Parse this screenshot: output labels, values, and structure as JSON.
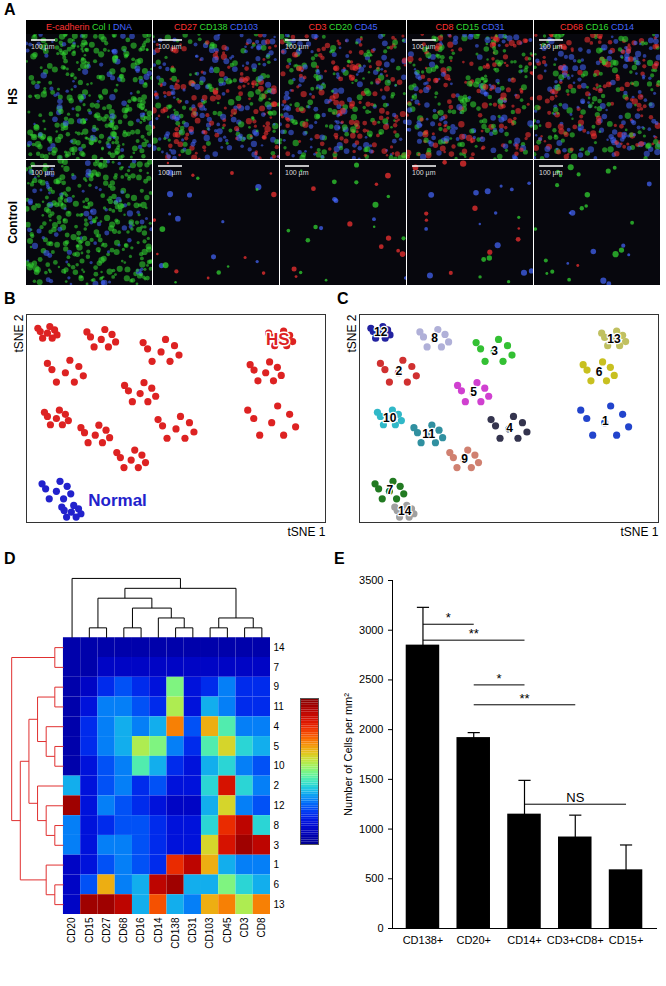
{
  "chart_data": [
    {
      "type": "image_grid",
      "title": "A",
      "rows": [
        "HS",
        "Control"
      ],
      "columns": [
        [
          {
            "name": "E-cadherin",
            "color": "#ff3333"
          },
          {
            "name": "Col I",
            "color": "#33dd33"
          },
          {
            "name": "DNA",
            "color": "#4466ff"
          }
        ],
        [
          {
            "name": "CD27",
            "color": "#ff3333"
          },
          {
            "name": "CD138",
            "color": "#33dd33"
          },
          {
            "name": "CD103",
            "color": "#4466ff"
          }
        ],
        [
          {
            "name": "CD3",
            "color": "#ff3333"
          },
          {
            "name": "CD20",
            "color": "#33dd33"
          },
          {
            "name": "CD45",
            "color": "#4466ff"
          }
        ],
        [
          {
            "name": "CD8",
            "color": "#ff3333"
          },
          {
            "name": "CD15",
            "color": "#33dd33"
          },
          {
            "name": "CD31",
            "color": "#4466ff"
          }
        ],
        [
          {
            "name": "CD68",
            "color": "#ff3333"
          },
          {
            "name": "CD16",
            "color": "#33dd33"
          },
          {
            "name": "CD14",
            "color": "#4466ff"
          }
        ]
      ],
      "scale_bar": "100 µm"
    },
    {
      "type": "scatter",
      "title": "B",
      "x_label": "tSNE 1",
      "y_label": "tSNE 2",
      "xlim": [
        0,
        100
      ],
      "ylim": [
        0,
        100
      ],
      "tick_labels": false,
      "series": [
        {
          "name": "HS",
          "color": "#dd2222",
          "x": [
            82,
            88,
            76,
            86,
            78,
            90,
            74,
            84,
            13,
            17.5,
            8.5,
            16,
            10,
            19,
            7,
            14.5,
            45,
            49.5,
            40.5,
            48,
            42,
            51,
            39,
            46.5,
            50,
            54.5,
            45.5,
            53,
            47,
            56,
            44,
            51.5,
            38,
            41.9,
            34.1,
            40.6,
            35.4,
            43.2,
            32.8,
            39.3,
            80,
            83.9,
            76.1,
            82.6,
            77.4,
            85.2,
            74.8,
            81.3,
            25,
            28.6,
            21.4,
            27.4,
            22.6,
            29.8,
            20.2,
            26.2,
            35,
            38.6,
            31.4,
            37.4,
            32.6,
            39.8,
            30.2,
            36.2,
            10,
            13,
            7,
            12,
            8,
            14,
            6,
            11,
            23,
            26.6,
            19.4,
            25.4,
            20.6,
            27.8,
            18.2,
            24.2,
            7,
            9.4,
            4.6,
            8.6,
            5.4,
            10.2,
            3.8,
            7.8,
            85,
            88,
            82,
            87,
            83,
            89,
            81,
            86
          ],
          "y": [
            48,
            52,
            50,
            42,
            42,
            46,
            54,
            56,
            72,
            75,
            73.5,
            67.5,
            67.5,
            70.5,
            76.5,
            78,
            82,
            85,
            83.5,
            77.5,
            77.5,
            80.5,
            86.5,
            88,
            45,
            48,
            46.5,
            40.5,
            40.5,
            43.5,
            49.5,
            51,
            62,
            64.6,
            63.3,
            58.1,
            58.1,
            60.7,
            65.9,
            67.2,
            72,
            74.6,
            73.3,
            68.1,
            68.1,
            70.7,
            75.9,
            77.2,
            88,
            90.4,
            89.2,
            84.4,
            84.4,
            86.8,
            91.6,
            92.8,
            30,
            32.4,
            31.2,
            26.4,
            26.4,
            28.8,
            33.6,
            34.8,
            50,
            52,
            51,
            47,
            47,
            49,
            53,
            54,
            42,
            44.4,
            43.2,
            38.4,
            38.4,
            40.8,
            45.6,
            46.8,
            91,
            92.6,
            91.8,
            88.6,
            88.6,
            90.2,
            93.4,
            94.2,
            88,
            90,
            89,
            85,
            85,
            87,
            91,
            92
          ]
        },
        {
          "name": "Normal",
          "color": "#2222cc",
          "x": [
            10,
            13.6,
            6.4,
            12.4,
            7.6,
            14.8,
            5.2,
            11.2,
            15,
            17.4,
            12.6,
            16.6,
            13.4,
            18.2,
            11.8,
            15.8
          ],
          "y": [
            15,
            17.4,
            16.2,
            11.4,
            11.4,
            13.8,
            18.6,
            19.8,
            5,
            6.6,
            5.8,
            2.6,
            2.6,
            4.2,
            7.4,
            8.2
          ]
        }
      ]
    },
    {
      "type": "scatter",
      "title": "C",
      "x_label": "tSNE 1",
      "y_label": "tSNE 2",
      "xlim": [
        0,
        100
      ],
      "ylim": [
        0,
        100
      ],
      "tick_labels": false,
      "series": [
        {
          "name": "1",
          "color": "#2244cc",
          "x": [
            82,
            88,
            76,
            86,
            78,
            90,
            74,
            84
          ],
          "y": [
            48,
            52,
            50,
            42,
            42,
            46,
            54,
            56
          ]
        },
        {
          "name": "2",
          "color": "#d03030",
          "x": [
            13,
            17.5,
            8.5,
            16,
            10,
            19,
            7,
            14.5
          ],
          "y": [
            72,
            75,
            73.5,
            67.5,
            67.5,
            70.5,
            76.5,
            78
          ]
        },
        {
          "name": "3",
          "color": "#33c033",
          "x": [
            45,
            49.5,
            40.5,
            48,
            42,
            51,
            39,
            46.5
          ],
          "y": [
            82,
            85,
            83.5,
            77.5,
            77.5,
            80.5,
            86.5,
            88
          ]
        },
        {
          "name": "4",
          "color": "#34344e",
          "x": [
            50,
            54.5,
            45.5,
            53,
            47,
            56,
            44,
            51.5
          ],
          "y": [
            45,
            48,
            46.5,
            40.5,
            40.5,
            43.5,
            49.5,
            51
          ]
        },
        {
          "name": "5",
          "color": "#d040d0",
          "x": [
            38,
            41.9,
            34.1,
            40.6,
            35.4,
            43.2,
            32.8,
            39.3
          ],
          "y": [
            62,
            64.6,
            63.3,
            58.1,
            58.1,
            60.7,
            65.9,
            67.2
          ]
        },
        {
          "name": "6",
          "color": "#c8c020",
          "x": [
            80,
            83.9,
            76.1,
            82.6,
            77.4,
            85.2,
            74.8,
            81.3
          ],
          "y": [
            72,
            74.6,
            73.3,
            68.1,
            68.1,
            70.7,
            75.9,
            77.2
          ]
        },
        {
          "name": "7",
          "color": "#227a22",
          "x": [
            10,
            13.6,
            6.4,
            12.4,
            7.6,
            14.8,
            5.2,
            11.2
          ],
          "y": [
            15,
            17.4,
            16.2,
            11.4,
            11.4,
            13.8,
            18.6,
            19.8
          ]
        },
        {
          "name": "8",
          "color": "#b0b0d8",
          "x": [
            25,
            28.6,
            21.4,
            27.4,
            22.6,
            29.8,
            20.2,
            26.2
          ],
          "y": [
            88,
            90.4,
            89.2,
            84.4,
            84.4,
            86.8,
            91.6,
            92.8
          ]
        },
        {
          "name": "9",
          "color": "#d08070",
          "x": [
            35,
            38.6,
            31.4,
            37.4,
            32.6,
            39.8,
            30.2,
            36.2
          ],
          "y": [
            30,
            32.4,
            31.2,
            26.4,
            26.4,
            28.8,
            33.6,
            34.8
          ]
        },
        {
          "name": "10",
          "color": "#30b8c8",
          "x": [
            10,
            13,
            7,
            12,
            8,
            14,
            6,
            11
          ],
          "y": [
            50,
            52,
            51,
            47,
            47,
            49,
            53,
            54
          ]
        },
        {
          "name": "11",
          "color": "#3090a0",
          "x": [
            23,
            26.6,
            19.4,
            25.4,
            20.6,
            27.8,
            18.2,
            24.2
          ],
          "y": [
            42,
            44.4,
            43.2,
            38.4,
            38.4,
            40.8,
            45.6,
            46.8
          ]
        },
        {
          "name": "12",
          "color": "#2222a0",
          "x": [
            7,
            9.4,
            4.6,
            8.6,
            5.4,
            10.2,
            3.8,
            7.8
          ],
          "y": [
            91,
            92.6,
            91.8,
            88.6,
            88.6,
            90.2,
            93.4,
            94.2
          ]
        },
        {
          "name": "13",
          "color": "#c0c060",
          "x": [
            85,
            88,
            82,
            87,
            83,
            89,
            81,
            86
          ],
          "y": [
            88,
            90,
            89,
            85,
            85,
            87,
            91,
            92
          ]
        },
        {
          "name": "14",
          "color": "#a0a0a0",
          "x": [
            15,
            17.4,
            12.6,
            16.6,
            13.4,
            18.2,
            11.8,
            15.8
          ],
          "y": [
            5,
            6.6,
            5.8,
            2.6,
            2.6,
            4.2,
            7.4,
            8.2
          ]
        }
      ]
    },
    {
      "type": "heatmap",
      "title": "D",
      "columns": [
        "CD20",
        "CD15",
        "CD27",
        "CD68",
        "CD16",
        "CD14",
        "CD138",
        "CD31",
        "CD103",
        "CD45",
        "CD3",
        "CD8"
      ],
      "rows": [
        "14",
        "7",
        "9",
        "11",
        "4",
        "5",
        "10",
        "2",
        "12",
        "8",
        "3",
        "1",
        "6",
        "13"
      ],
      "cells": [
        [
          0.05,
          0.05,
          0.05,
          0.05,
          0.05,
          0.05,
          0.05,
          0.05,
          0.05,
          0.05,
          0.05,
          0.05
        ],
        [
          0.05,
          0.05,
          0.1,
          0.1,
          0.1,
          0.1,
          0.1,
          0.1,
          0.1,
          0.1,
          0.1,
          0.1
        ],
        [
          0.05,
          0.1,
          0.2,
          0.25,
          0.2,
          0.15,
          0.5,
          0.15,
          0.2,
          0.3,
          0.2,
          0.2
        ],
        [
          0.05,
          0.15,
          0.3,
          0.3,
          0.25,
          0.2,
          0.55,
          0.15,
          0.35,
          0.3,
          0.2,
          0.2
        ],
        [
          0.05,
          0.2,
          0.3,
          0.35,
          0.3,
          0.35,
          0.7,
          0.25,
          0.65,
          0.45,
          0.3,
          0.3
        ],
        [
          0.05,
          0.2,
          0.3,
          0.35,
          0.55,
          0.5,
          0.3,
          0.2,
          0.45,
          0.6,
          0.4,
          0.35
        ],
        [
          0.05,
          0.15,
          0.25,
          0.3,
          0.45,
          0.35,
          0.2,
          0.15,
          0.35,
          0.4,
          0.3,
          0.25
        ],
        [
          0.35,
          0.15,
          0.25,
          0.3,
          0.2,
          0.25,
          0.15,
          0.15,
          0.4,
          0.85,
          0.4,
          0.3
        ],
        [
          0.95,
          0.15,
          0.3,
          0.25,
          0.2,
          0.15,
          0.1,
          0.1,
          0.35,
          0.6,
          0.3,
          0.25
        ],
        [
          0.3,
          0.15,
          0.2,
          0.25,
          0.25,
          0.2,
          0.15,
          0.15,
          0.4,
          0.8,
          0.9,
          0.4
        ],
        [
          0.3,
          0.15,
          0.3,
          0.3,
          0.25,
          0.2,
          0.15,
          0.15,
          0.6,
          0.85,
          0.95,
          0.9
        ],
        [
          0.1,
          0.15,
          0.25,
          0.3,
          0.25,
          0.2,
          0.8,
          0.9,
          0.65,
          0.35,
          0.3,
          0.3
        ],
        [
          0.1,
          0.25,
          0.65,
          0.3,
          0.35,
          0.9,
          0.95,
          0.35,
          0.35,
          0.5,
          0.4,
          0.35
        ],
        [
          0.1,
          0.95,
          0.95,
          0.9,
          0.35,
          0.75,
          0.35,
          0.3,
          0.65,
          0.7,
          0.55,
          0.7
        ]
      ],
      "color_range": [
        0,
        1
      ],
      "column_dendrogram": [
        "CD20",
        [
          [
            [
              "CD15",
              "CD27"
            ],
            [
              [
                "CD68",
                "CD16"
              ],
              [
                "CD14",
                [
                  "CD138",
                  "CD31"
                ]
              ]
            ]
          ],
          [
            [
              "CD103",
              "CD45"
            ],
            [
              "CD3",
              "CD8"
            ]
          ]
        ]
      ],
      "row_dendrogram": [
        [
          "14",
          "7"
        ],
        [
          [
            [
              [
                "9",
                "11"
              ],
              [
                "4",
                [
                  "5",
                  "10"
                ]
              ]
            ],
            [
              "2",
              [
                "12",
                [
                  "8",
                  "3"
                ]
              ]
            ]
          ],
          [
            "1",
            [
              "6",
              "13"
            ]
          ]
        ]
      ]
    },
    {
      "type": "bar",
      "title": "E",
      "categories": [
        "CD138+",
        "CD20+",
        "CD14+",
        "CD3+CD8+",
        "CD15+"
      ],
      "values": [
        2850,
        1920,
        1150,
        920,
        590
      ],
      "errors": [
        380,
        50,
        340,
        220,
        250
      ],
      "color": "#000000",
      "y_label": "Number of Cells per mm²",
      "ylim": [
        0,
        3500
      ],
      "yticks": [
        0,
        500,
        1000,
        1500,
        2000,
        2500,
        3000,
        3500
      ],
      "annotations": [
        {
          "from": "CD138+",
          "to": "CD20+",
          "y": 3060,
          "text": "*"
        },
        {
          "from": "CD138+",
          "to": "CD14+",
          "y": 2900,
          "text": "**"
        },
        {
          "from": "CD20+",
          "to": "CD14+",
          "y": 2450,
          "text": "*"
        },
        {
          "from": "CD20+",
          "to": "CD3+CD8+",
          "y": 2250,
          "text": "**"
        },
        {
          "from": "CD14+",
          "to": "CD15+",
          "y": 1250,
          "text": "NS"
        }
      ]
    }
  ]
}
